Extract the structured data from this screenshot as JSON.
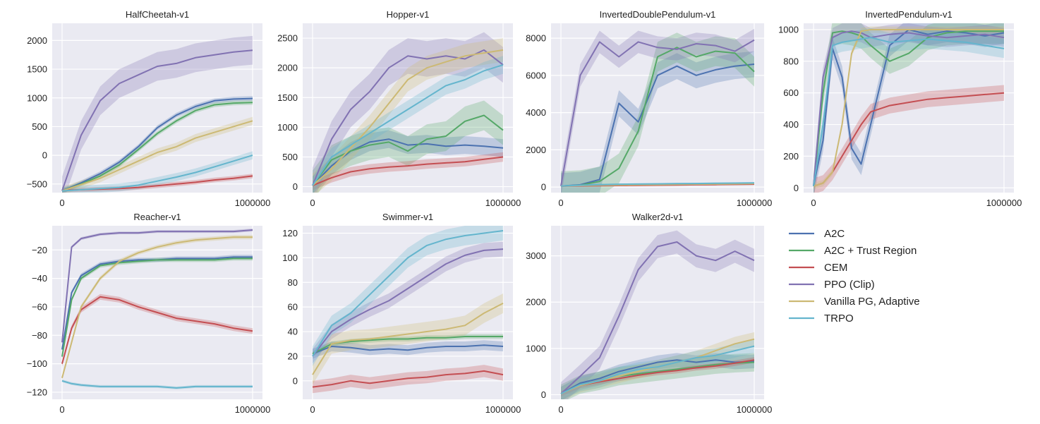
{
  "legend": {
    "items": [
      {
        "name": "A2C",
        "color": "#4c72b0"
      },
      {
        "name": "A2C + Trust Region",
        "color": "#55a868"
      },
      {
        "name": "CEM",
        "color": "#c44e52"
      },
      {
        "name": "PPO (Clip)",
        "color": "#8172b2"
      },
      {
        "name": "Vanilla PG, Adaptive",
        "color": "#ccb974"
      },
      {
        "name": "TRPO",
        "color": "#64b5cd"
      }
    ]
  },
  "chart_data": [
    {
      "type": "line",
      "title": "HalfCheetah-v1",
      "xlim": [
        0,
        1000000
      ],
      "ylim": [
        -650,
        2300
      ],
      "xticks": [
        0,
        1000000
      ],
      "xtick_labels": [
        "0",
        "1000000"
      ],
      "yticks": [
        -500,
        0,
        500,
        1000,
        1500,
        2000
      ],
      "ytick_labels": [
        "−500",
        "0",
        "500",
        "1000",
        "1500",
        "2000"
      ],
      "x": [
        0,
        100000,
        200000,
        300000,
        400000,
        500000,
        600000,
        700000,
        800000,
        900000,
        1000000
      ],
      "series": [
        {
          "name": "A2C",
          "values": [
            -620,
            -480,
            -320,
            -120,
            150,
            480,
            700,
            850,
            950,
            980,
            990
          ],
          "band": 40
        },
        {
          "name": "A2C + Trust Region",
          "values": [
            -620,
            -500,
            -360,
            -170,
            100,
            380,
            600,
            780,
            880,
            910,
            920
          ],
          "band": 40
        },
        {
          "name": "CEM",
          "values": [
            -610,
            -600,
            -590,
            -580,
            -560,
            -530,
            -500,
            -470,
            -430,
            -400,
            -360
          ],
          "band": 40
        },
        {
          "name": "PPO (Clip)",
          "values": [
            -620,
            350,
            950,
            1250,
            1400,
            1550,
            1600,
            1700,
            1750,
            1800,
            1830
          ],
          "band": 250
        },
        {
          "name": "Vanilla PG, Adaptive",
          "values": [
            -620,
            -510,
            -400,
            -250,
            -100,
            50,
            150,
            300,
            400,
            500,
            600
          ],
          "band": 70
        },
        {
          "name": "TRPO",
          "values": [
            -620,
            -600,
            -580,
            -560,
            -520,
            -450,
            -380,
            -300,
            -200,
            -100,
            0
          ],
          "band": 70
        }
      ]
    },
    {
      "type": "line",
      "title": "Hopper-v1",
      "xlim": [
        0,
        1000000
      ],
      "ylim": [
        -100,
        2750
      ],
      "xticks": [
        0,
        1000000
      ],
      "xtick_labels": [
        "0",
        "1000000"
      ],
      "yticks": [
        0,
        500,
        1000,
        1500,
        2000,
        2500
      ],
      "ytick_labels": [
        "0",
        "500",
        "1000",
        "1500",
        "2000",
        "2500"
      ],
      "x": [
        0,
        100000,
        200000,
        300000,
        400000,
        500000,
        600000,
        700000,
        800000,
        900000,
        1000000
      ],
      "series": [
        {
          "name": "A2C",
          "values": [
            20,
            350,
            600,
            750,
            800,
            700,
            720,
            680,
            700,
            680,
            650
          ],
          "band": 150
        },
        {
          "name": "A2C + Trust Region",
          "values": [
            20,
            450,
            600,
            700,
            750,
            600,
            800,
            850,
            1100,
            1200,
            950
          ],
          "band": 250
        },
        {
          "name": "CEM",
          "values": [
            20,
            150,
            250,
            300,
            330,
            350,
            380,
            400,
            420,
            460,
            500
          ],
          "band": 80
        },
        {
          "name": "PPO (Clip)",
          "values": [
            20,
            800,
            1300,
            1600,
            2000,
            2200,
            2150,
            2200,
            2150,
            2300,
            2050
          ],
          "band": 300
        },
        {
          "name": "Vanilla PG, Adaptive",
          "values": [
            20,
            300,
            650,
            1000,
            1400,
            1800,
            2000,
            2100,
            2200,
            2250,
            2300
          ],
          "band": 200
        },
        {
          "name": "TRPO",
          "values": [
            20,
            500,
            700,
            900,
            1100,
            1300,
            1500,
            1700,
            1800,
            1950,
            2050
          ],
          "band": 150
        }
      ]
    },
    {
      "type": "line",
      "title": "InvertedDoublePendulum-v1",
      "xlim": [
        0,
        1000000
      ],
      "ylim": [
        -300,
        8800
      ],
      "xticks": [
        0,
        1000000
      ],
      "xtick_labels": [
        "0",
        "1000000"
      ],
      "yticks": [
        0,
        2000,
        4000,
        6000,
        8000
      ],
      "ytick_labels": [
        "0",
        "2000",
        "4000",
        "6000",
        "8000"
      ],
      "x": [
        0,
        100000,
        200000,
        300000,
        400000,
        500000,
        600000,
        700000,
        800000,
        900000,
        1000000
      ],
      "series": [
        {
          "name": "A2C",
          "values": [
            50,
            120,
            400,
            4500,
            3500,
            6000,
            6500,
            6000,
            6300,
            6500,
            6600
          ],
          "band": 700
        },
        {
          "name": "A2C + Trust Region",
          "values": [
            50,
            100,
            300,
            1000,
            3000,
            7000,
            7500,
            7000,
            7300,
            7200,
            6200
          ],
          "band": 800
        },
        {
          "name": "CEM",
          "values": [
            50,
            60,
            70,
            80,
            90,
            100,
            110,
            120,
            130,
            140,
            150
          ],
          "band": 30
        },
        {
          "name": "PPO (Clip)",
          "values": [
            50,
            6000,
            7800,
            7000,
            7800,
            7500,
            7400,
            7700,
            7600,
            7300,
            7900
          ],
          "band": 600
        },
        {
          "name": "Vanilla PG, Adaptive",
          "values": [
            50,
            80,
            100,
            110,
            120,
            130,
            140,
            150,
            160,
            170,
            180
          ],
          "band": 40
        },
        {
          "name": "TRPO",
          "values": [
            50,
            100,
            130,
            150,
            160,
            170,
            180,
            190,
            200,
            210,
            220
          ],
          "band": 40
        }
      ]
    },
    {
      "type": "line",
      "title": "InvertedPendulum-v1",
      "xlim": [
        0,
        1000000
      ],
      "ylim": [
        -30,
        1040
      ],
      "xticks": [
        0,
        1000000
      ],
      "xtick_labels": [
        "0",
        "1000000"
      ],
      "yticks": [
        0,
        200,
        400,
        600,
        800,
        1000
      ],
      "ytick_labels": [
        "0",
        "200",
        "400",
        "600",
        "800",
        "1000"
      ],
      "x": [
        0,
        50000,
        100000,
        150000,
        200000,
        250000,
        300000,
        400000,
        500000,
        600000,
        700000,
        800000,
        900000,
        1000000
      ],
      "series": [
        {
          "name": "A2C",
          "values": [
            10,
            300,
            880,
            700,
            250,
            150,
            400,
            900,
            1000,
            970,
            990,
            980,
            960,
            980
          ],
          "band": 70
        },
        {
          "name": "A2C + Trust Region",
          "values": [
            10,
            600,
            980,
            990,
            980,
            960,
            900,
            800,
            850,
            950,
            980,
            990,
            990,
            990
          ],
          "band": 80
        },
        {
          "name": "CEM",
          "values": [
            10,
            30,
            100,
            200,
            300,
            400,
            480,
            520,
            540,
            560,
            570,
            580,
            590,
            600
          ],
          "band": 50
        },
        {
          "name": "PPO (Clip)",
          "values": [
            10,
            700,
            950,
            980,
            990,
            980,
            950,
            970,
            980,
            960,
            950,
            960,
            970,
            950
          ],
          "band": 60
        },
        {
          "name": "Vanilla PG, Adaptive",
          "values": [
            10,
            30,
            100,
            400,
            850,
            990,
            1000,
            1000,
            1000,
            1000,
            1000,
            1000,
            1000,
            1000
          ],
          "band": 20
        },
        {
          "name": "TRPO",
          "values": [
            10,
            400,
            900,
            920,
            930,
            940,
            950,
            920,
            930,
            940,
            930,
            920,
            900,
            880
          ],
          "band": 60
        }
      ]
    },
    {
      "type": "line",
      "title": "Reacher-v1",
      "xlim": [
        0,
        1000000
      ],
      "ylim": [
        -125,
        -3
      ],
      "xticks": [
        0,
        1000000
      ],
      "xtick_labels": [
        "0",
        "1000000"
      ],
      "yticks": [
        -120,
        -100,
        -80,
        -60,
        -40,
        -20
      ],
      "ytick_labels": [
        "−120",
        "−100",
        "−80",
        "−60",
        "−40",
        "−20"
      ],
      "x": [
        0,
        50000,
        100000,
        200000,
        300000,
        400000,
        500000,
        600000,
        700000,
        800000,
        900000,
        1000000
      ],
      "series": [
        {
          "name": "A2C",
          "values": [
            -90,
            -50,
            -38,
            -30,
            -28,
            -27,
            -27,
            -26,
            -26,
            -26,
            -25,
            -25
          ],
          "band": 1.5
        },
        {
          "name": "A2C + Trust Region",
          "values": [
            -95,
            -55,
            -40,
            -31,
            -29,
            -28,
            -27,
            -27,
            -27,
            -27,
            -26,
            -26
          ],
          "band": 1.5
        },
        {
          "name": "CEM",
          "values": [
            -100,
            -75,
            -62,
            -53,
            -55,
            -60,
            -64,
            -68,
            -70,
            -72,
            -75,
            -77
          ],
          "band": 2
        },
        {
          "name": "PPO (Clip)",
          "values": [
            -85,
            -18,
            -12,
            -9,
            -8,
            -8,
            -7,
            -7,
            -7,
            -7,
            -7,
            -6
          ],
          "band": 1
        },
        {
          "name": "Vanilla PG, Adaptive",
          "values": [
            -110,
            -85,
            -60,
            -40,
            -28,
            -22,
            -18,
            -15,
            -13,
            -12,
            -11,
            -11
          ],
          "band": 1.5
        },
        {
          "name": "TRPO",
          "values": [
            -112,
            -114,
            -115,
            -116,
            -116,
            -116,
            -116,
            -117,
            -116,
            -116,
            -116,
            -116
          ],
          "band": 1
        }
      ]
    },
    {
      "type": "line",
      "title": "Swimmer-v1",
      "xlim": [
        0,
        1000000
      ],
      "ylim": [
        -15,
        126
      ],
      "xticks": [
        0,
        1000000
      ],
      "xtick_labels": [
        "0",
        "1000000"
      ],
      "yticks": [
        0,
        20,
        40,
        60,
        80,
        100,
        120
      ],
      "ytick_labels": [
        "0",
        "20",
        "40",
        "60",
        "80",
        "100",
        "120"
      ],
      "x": [
        0,
        100000,
        200000,
        300000,
        400000,
        500000,
        600000,
        700000,
        800000,
        900000,
        1000000
      ],
      "series": [
        {
          "name": "A2C",
          "values": [
            22,
            28,
            27,
            25,
            26,
            25,
            27,
            28,
            28,
            29,
            28
          ],
          "band": 4
        },
        {
          "name": "A2C + Trust Region",
          "values": [
            22,
            30,
            32,
            33,
            34,
            34,
            35,
            35,
            36,
            36,
            36
          ],
          "band": 2
        },
        {
          "name": "CEM",
          "values": [
            -5,
            -3,
            0,
            -2,
            0,
            2,
            3,
            5,
            6,
            8,
            5
          ],
          "band": 5
        },
        {
          "name": "PPO (Clip)",
          "values": [
            20,
            40,
            50,
            58,
            65,
            75,
            85,
            95,
            102,
            106,
            107
          ],
          "band": 6
        },
        {
          "name": "Vanilla PG, Adaptive",
          "values": [
            5,
            30,
            33,
            34,
            36,
            38,
            40,
            42,
            45,
            55,
            63
          ],
          "band": 8
        },
        {
          "name": "TRPO",
          "values": [
            20,
            45,
            55,
            70,
            85,
            100,
            110,
            115,
            118,
            120,
            122
          ],
          "band": 8
        }
      ]
    },
    {
      "type": "line",
      "title": "Walker2d-v1",
      "xlim": [
        0,
        1000000
      ],
      "ylim": [
        -100,
        3650
      ],
      "xticks": [
        0,
        1000000
      ],
      "xtick_labels": [
        "0",
        "1000000"
      ],
      "yticks": [
        0,
        1000,
        2000,
        3000
      ],
      "ytick_labels": [
        "0",
        "1000",
        "2000",
        "3000"
      ],
      "x": [
        0,
        100000,
        200000,
        300000,
        400000,
        500000,
        600000,
        700000,
        800000,
        900000,
        1000000
      ],
      "series": [
        {
          "name": "A2C",
          "values": [
            20,
            250,
            350,
            500,
            600,
            700,
            750,
            700,
            750,
            700,
            720
          ],
          "band": 150
        },
        {
          "name": "A2C + Trust Region",
          "values": [
            20,
            220,
            300,
            400,
            450,
            500,
            550,
            600,
            650,
            680,
            700
          ],
          "band": 200
        },
        {
          "name": "CEM",
          "values": [
            20,
            200,
            280,
            350,
            420,
            480,
            520,
            580,
            620,
            680,
            750
          ],
          "band": 60
        },
        {
          "name": "PPO (Clip)",
          "values": [
            20,
            400,
            800,
            1700,
            2700,
            3200,
            3300,
            3000,
            2900,
            3100,
            2900
          ],
          "band": 250
        },
        {
          "name": "Vanilla PG, Adaptive",
          "values": [
            20,
            200,
            300,
            400,
            500,
            600,
            700,
            800,
            950,
            1100,
            1200
          ],
          "band": 150
        },
        {
          "name": "TRPO",
          "values": [
            20,
            220,
            300,
            450,
            550,
            600,
            700,
            800,
            850,
            950,
            1050
          ],
          "band": 150
        }
      ]
    }
  ]
}
